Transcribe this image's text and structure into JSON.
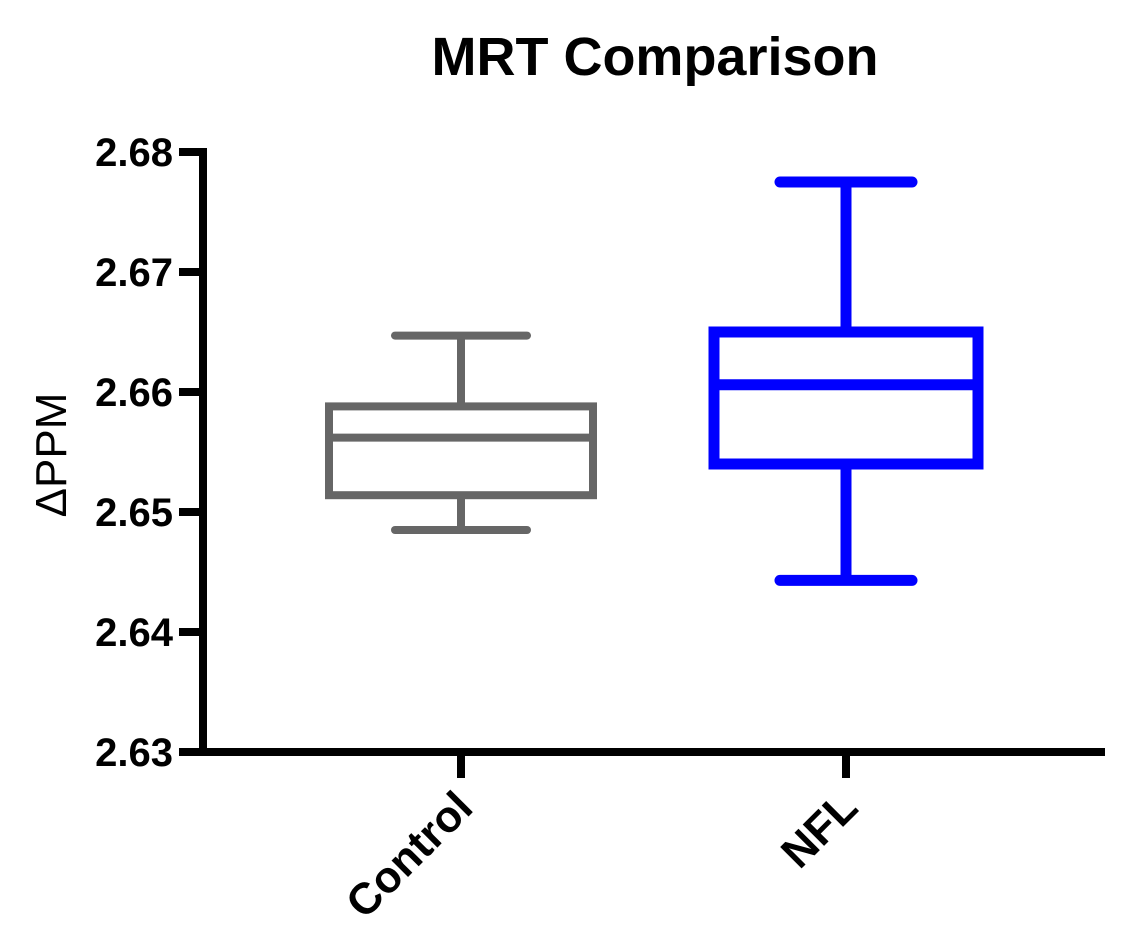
{
  "chart_data": {
    "type": "box",
    "title": "MRT Comparison",
    "xlabel": "",
    "ylabel": "ΔPPM",
    "ylim": [
      2.63,
      2.68
    ],
    "yticks": [
      "2.68",
      "2.67",
      "2.66",
      "2.65",
      "2.64",
      "2.63"
    ],
    "categories": [
      "Control",
      "NFL"
    ],
    "grid": false,
    "legend": "none",
    "series": [
      {
        "category": "Control",
        "color": "#666666",
        "min": 2.6485,
        "q1": 2.6514,
        "median": 2.6562,
        "q3": 2.6588,
        "max": 2.6647
      },
      {
        "category": "NFL",
        "color": "#0000ff",
        "min": 2.6443,
        "q1": 2.654,
        "median": 2.6606,
        "q3": 2.665,
        "max": 2.6775
      }
    ]
  }
}
